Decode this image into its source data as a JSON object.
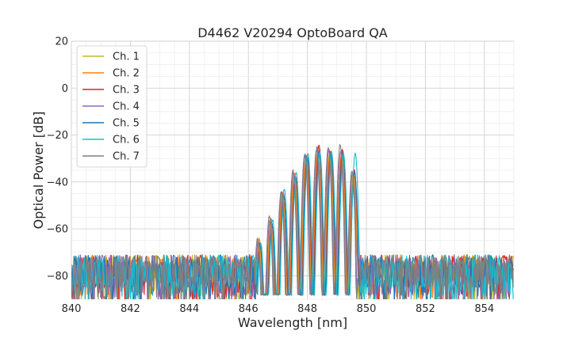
{
  "chart_data": {
    "type": "line",
    "title": "D4462 V20294 OptoBoard QA",
    "xlabel": "Wavelength [nm]",
    "ylabel": "Optical Power [dB]",
    "xlim": [
      840,
      855
    ],
    "ylim": [
      -90,
      20
    ],
    "xticks": [
      840,
      842,
      844,
      846,
      848,
      850,
      852,
      854
    ],
    "yticks": [
      20,
      0,
      -20,
      -40,
      -60,
      -80
    ],
    "grid": true,
    "legend_position": "top-left",
    "noise_floor_db": -80,
    "series": [
      {
        "name": "Ch. 1",
        "color": "#bcbd22",
        "offset_nm": 0.0,
        "peaks": [
          [
            846.35,
            -65
          ],
          [
            846.75,
            -56
          ],
          [
            847.15,
            -45
          ],
          [
            847.55,
            -37
          ],
          [
            847.95,
            -30
          ],
          [
            848.35,
            -27
          ],
          [
            848.75,
            -28
          ],
          [
            849.15,
            -29
          ],
          [
            849.55,
            -37
          ]
        ]
      },
      {
        "name": "Ch. 2",
        "color": "#ff7f0e",
        "offset_nm": 0.02,
        "peaks": [
          [
            846.35,
            -64
          ],
          [
            846.75,
            -55
          ],
          [
            847.15,
            -44
          ],
          [
            847.55,
            -36
          ],
          [
            847.95,
            -29
          ],
          [
            848.35,
            -25
          ],
          [
            848.75,
            -27
          ],
          [
            849.15,
            -27
          ],
          [
            849.55,
            -36
          ]
        ]
      },
      {
        "name": "Ch. 3",
        "color": "#d62728",
        "offset_nm": 0.04,
        "peaks": [
          [
            846.35,
            -66
          ],
          [
            846.75,
            -57
          ],
          [
            847.15,
            -45
          ],
          [
            847.55,
            -37
          ],
          [
            847.95,
            -29
          ],
          [
            848.35,
            -24
          ],
          [
            848.75,
            -27
          ],
          [
            849.15,
            -26
          ],
          [
            849.55,
            -35
          ]
        ]
      },
      {
        "name": "Ch. 4",
        "color": "#9467bd",
        "offset_nm": -0.02,
        "peaks": [
          [
            846.35,
            -65
          ],
          [
            846.75,
            -56
          ],
          [
            847.15,
            -44
          ],
          [
            847.55,
            -36
          ],
          [
            847.95,
            -28
          ],
          [
            848.35,
            -25
          ],
          [
            848.75,
            -26
          ],
          [
            849.15,
            -27
          ],
          [
            849.55,
            -36
          ]
        ]
      },
      {
        "name": "Ch. 5",
        "color": "#1f77b4",
        "offset_nm": 0.05,
        "peaks": [
          [
            846.35,
            -67
          ],
          [
            846.75,
            -58
          ],
          [
            847.15,
            -46
          ],
          [
            847.55,
            -38
          ],
          [
            847.95,
            -29
          ],
          [
            848.35,
            -27
          ],
          [
            848.75,
            -28
          ],
          [
            849.15,
            -27
          ],
          [
            849.55,
            -36
          ]
        ]
      },
      {
        "name": "Ch. 6",
        "color": "#17becf",
        "offset_nm": 0.07,
        "peaks": [
          [
            846.35,
            -66
          ],
          [
            846.75,
            -56
          ],
          [
            847.15,
            -43
          ],
          [
            847.55,
            -36
          ],
          [
            847.95,
            -28
          ],
          [
            848.35,
            -27
          ],
          [
            848.75,
            -27
          ],
          [
            849.15,
            -28
          ],
          [
            849.55,
            -28
          ]
        ]
      },
      {
        "name": "Ch. 7",
        "color": "#7f7f7f",
        "offset_nm": -0.04,
        "peaks": [
          [
            846.35,
            -64
          ],
          [
            846.75,
            -54
          ],
          [
            847.15,
            -44
          ],
          [
            847.55,
            -35
          ],
          [
            847.95,
            -28
          ],
          [
            848.35,
            -26
          ],
          [
            848.75,
            -25
          ],
          [
            849.15,
            -24
          ],
          [
            849.55,
            -35
          ]
        ]
      }
    ]
  }
}
